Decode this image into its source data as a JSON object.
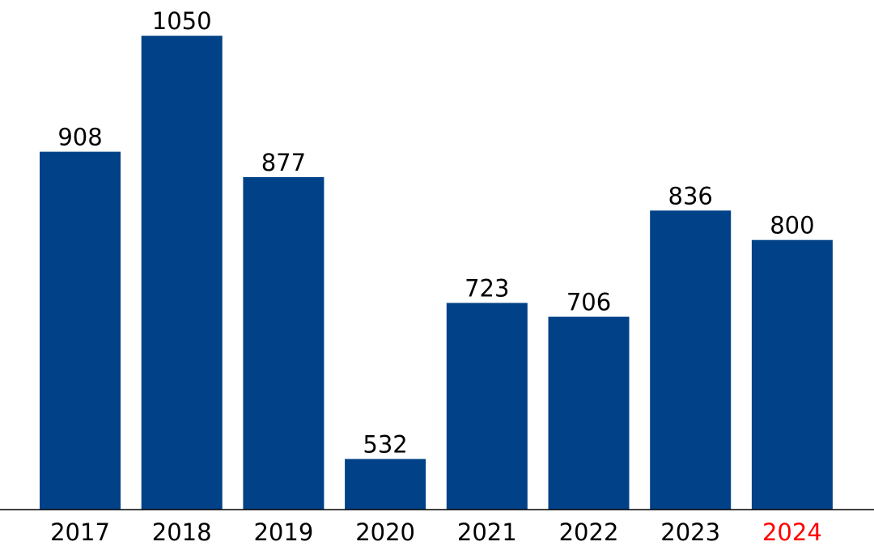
{
  "chart_data": {
    "type": "bar",
    "title": "",
    "xlabel": "",
    "ylabel": "",
    "categories": [
      "2017",
      "2018",
      "2019",
      "2020",
      "2021",
      "2022",
      "2023",
      "2024"
    ],
    "values": [
      908,
      1050,
      877,
      532,
      723,
      706,
      836,
      800
    ],
    "data_labels": [
      "908",
      "1050",
      "877",
      "532",
      "723",
      "706",
      "836",
      "800"
    ],
    "ylim": [
      470,
      1070
    ],
    "grid": false,
    "bar_color": "#004187",
    "highlight_category": "2024",
    "highlight_label_color": "#ff0000",
    "tick_label_color": "#000000",
    "axis_color": "#000000"
  }
}
